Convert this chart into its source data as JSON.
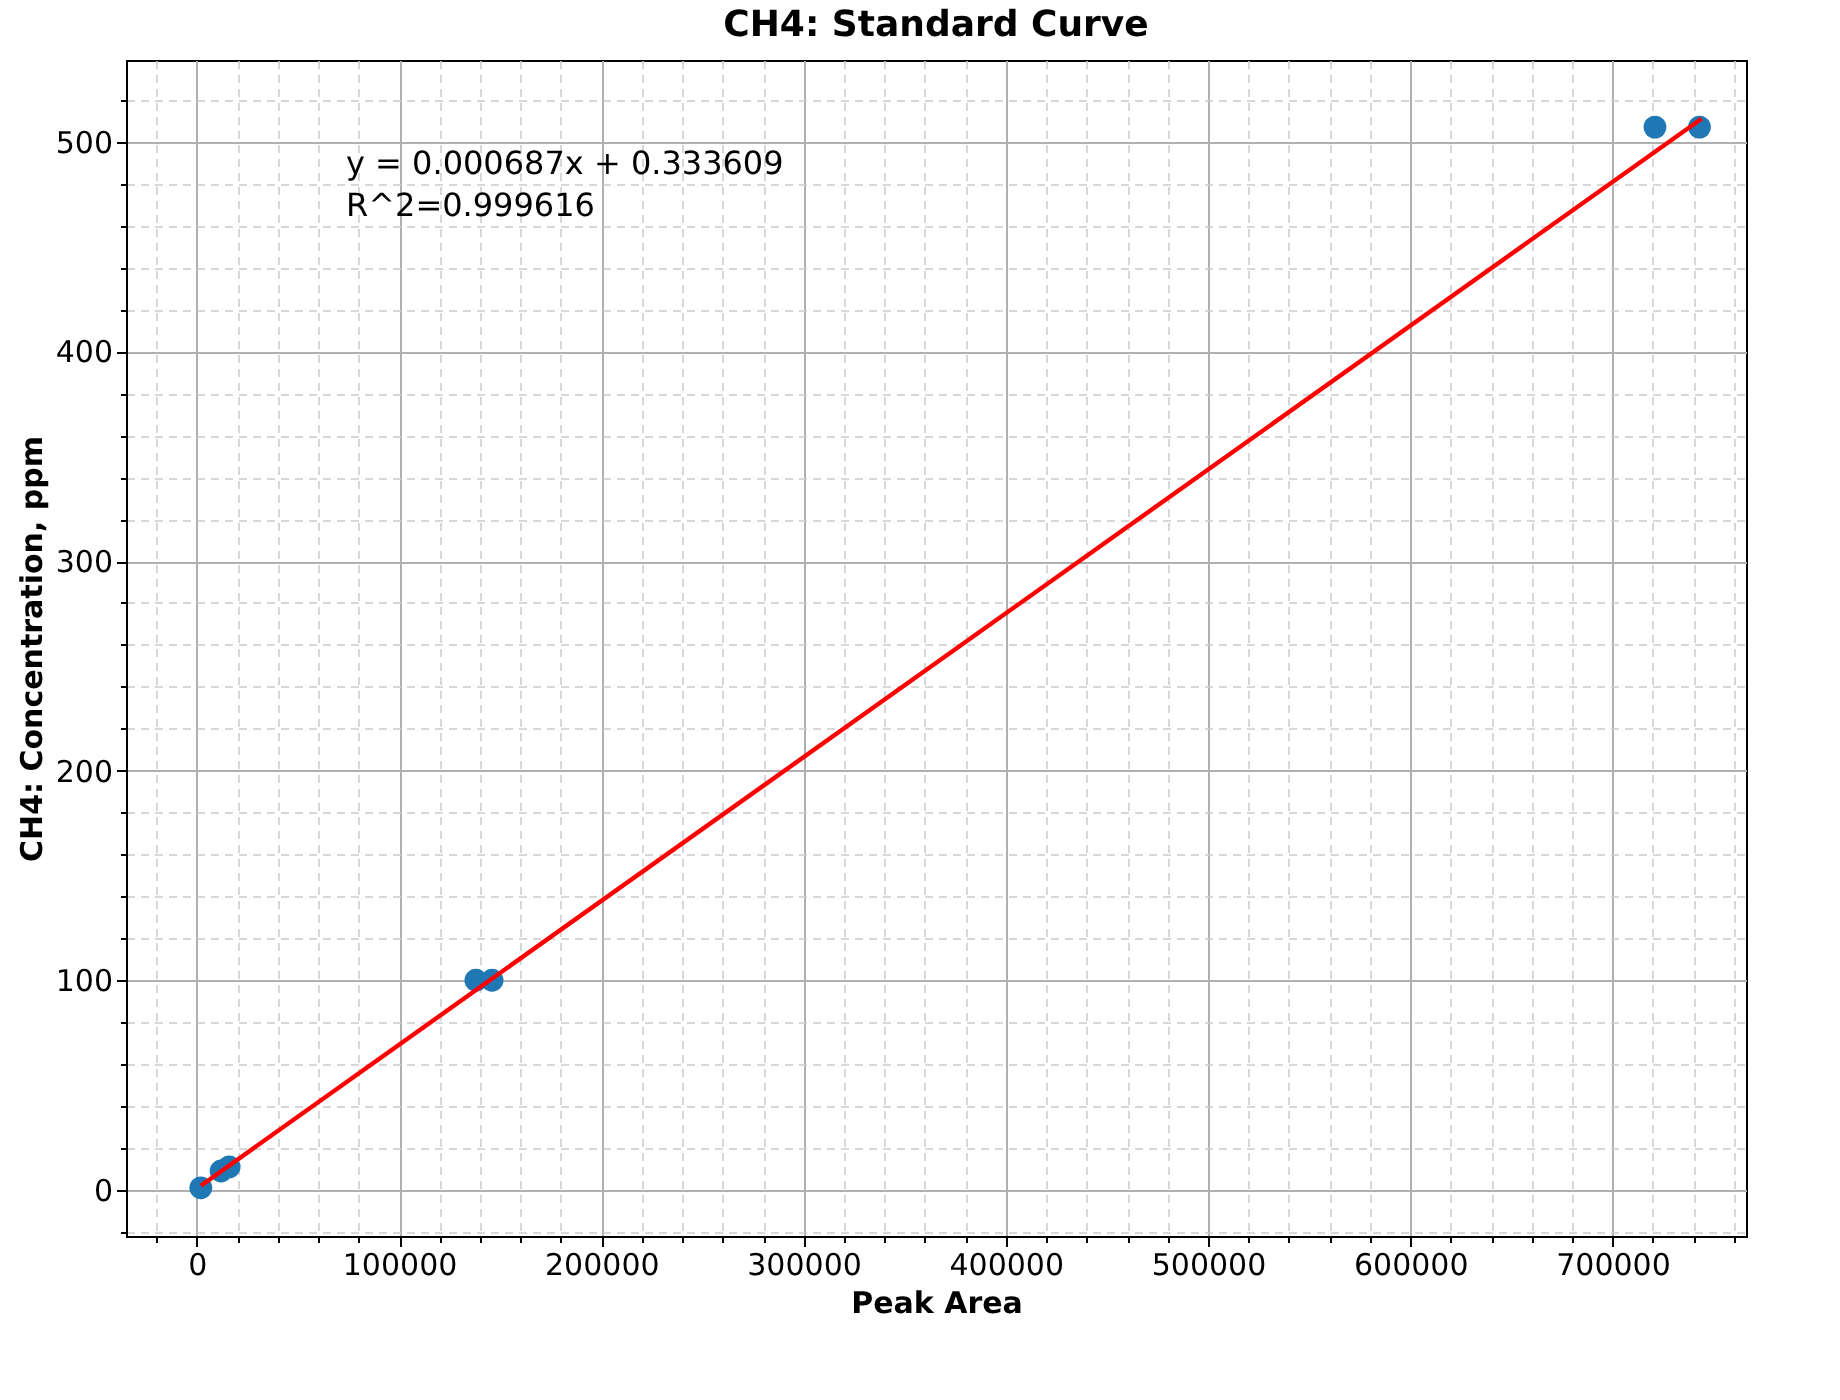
{
  "chart_data": {
    "type": "scatter",
    "title": "CH4: Standard Curve",
    "xlabel": "Peak Area",
    "ylabel": "CH4: Concentration, ppm",
    "annotations": [
      "y = 0.000687x + 0.333609",
      "R^2=0.999616"
    ],
    "series": [
      {
        "color": "#1f77b4",
        "x": [
          2000,
          12000,
          16000,
          138000,
          146000,
          721000,
          743000
        ],
        "values": [
          1,
          9,
          11,
          100,
          100,
          507,
          507
        ]
      },
      {
        "type": "line",
        "color": "#ff0000",
        "line_style": "solid",
        "marker": "none",
        "x": [
          2000,
          744000
        ],
        "values": [
          2,
          511
        ]
      }
    ],
    "marker": "circle",
    "grid": true,
    "xlim": [
      -35000,
      766000
    ],
    "xticks": [
      {
        "value": -20000,
        "label": null
      },
      0,
      {
        "value": 20000,
        "label": null
      },
      {
        "value": 40000,
        "label": null
      },
      {
        "value": 60000,
        "label": null
      },
      {
        "value": 80000,
        "label": null
      },
      100000,
      {
        "value": 120000,
        "label": null
      },
      {
        "value": 140000,
        "label": null
      },
      {
        "value": 160000,
        "label": null
      },
      {
        "value": 180000,
        "label": null
      },
      200000,
      {
        "value": 220000,
        "label": null
      },
      {
        "value": 240000,
        "label": null
      },
      {
        "value": 260000,
        "label": null
      },
      {
        "value": 280000,
        "label": null
      },
      300000,
      {
        "value": 320000,
        "label": null
      },
      {
        "value": 340000,
        "label": null
      },
      {
        "value": 360000,
        "label": null
      },
      {
        "value": 380000,
        "label": null
      },
      400000,
      {
        "value": 420000,
        "label": null
      },
      {
        "value": 440000,
        "label": null
      },
      {
        "value": 460000,
        "label": null
      },
      {
        "value": 480000,
        "label": null
      },
      500000,
      {
        "value": 520000,
        "label": null
      },
      {
        "value": 540000,
        "label": null
      },
      {
        "value": 560000,
        "label": null
      },
      {
        "value": 580000,
        "label": null
      },
      600000,
      {
        "value": 620000,
        "label": null
      },
      {
        "value": 640000,
        "label": null
      },
      {
        "value": 660000,
        "label": null
      },
      {
        "value": 680000,
        "label": null
      },
      700000,
      {
        "value": 720000,
        "label": null
      },
      {
        "value": 740000,
        "label": null
      },
      {
        "value": 760000,
        "label": null
      }
    ],
    "ylim": [
      -22,
      539
    ],
    "yticks": [
      {
        "value": -20,
        "label": null
      },
      0,
      {
        "value": 20,
        "label": null
      },
      {
        "value": 40,
        "label": null
      },
      {
        "value": 60,
        "label": null
      },
      {
        "value": 80,
        "label": null
      },
      100,
      {
        "value": 120,
        "label": null
      },
      {
        "value": 140,
        "label": null
      },
      {
        "value": 160,
        "label": null
      },
      {
        "value": 180,
        "label": null
      },
      200,
      {
        "value": 220,
        "label": null
      },
      {
        "value": 240,
        "label": null
      },
      {
        "value": 260,
        "label": null
      },
      {
        "value": 280,
        "label": null
      },
      300,
      {
        "value": 320,
        "label": null
      },
      {
        "value": 340,
        "label": null
      },
      {
        "value": 360,
        "label": null
      },
      {
        "value": 380,
        "label": null
      },
      400,
      {
        "value": 420,
        "label": null
      },
      {
        "value": 440,
        "label": null
      },
      {
        "value": 460,
        "label": null
      },
      {
        "value": 480,
        "label": null
      },
      500,
      {
        "value": 520,
        "label": null
      }
    ]
  }
}
